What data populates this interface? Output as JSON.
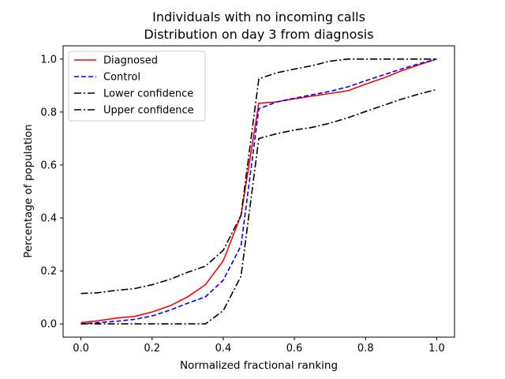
{
  "chart_data": {
    "type": "line",
    "title_lines": [
      "Individuals with no incoming calls",
      "Distribution on day 3 from diagnosis"
    ],
    "xlabel": "Normalized fractional ranking",
    "ylabel": "Percentage of population",
    "xlim": [
      -0.05,
      1.05
    ],
    "ylim": [
      -0.05,
      1.05
    ],
    "xticks": [
      0.0,
      0.2,
      0.4,
      0.6,
      0.8,
      1.0
    ],
    "xtick_labels": [
      "0.0",
      "0.2",
      "0.4",
      "0.6",
      "0.8",
      "1.0"
    ],
    "yticks": [
      0.0,
      0.2,
      0.4,
      0.6,
      0.8,
      1.0
    ],
    "ytick_labels": [
      "0.0",
      "0.2",
      "0.4",
      "0.6",
      "0.8",
      "1.0"
    ],
    "grid": false,
    "legend_position": "top-left",
    "series": [
      {
        "name": "Diagnosed",
        "color": "#ff0000",
        "style": "solid",
        "points": [
          [
            0.0,
            0.005
          ],
          [
            0.05,
            0.012
          ],
          [
            0.1,
            0.022
          ],
          [
            0.15,
            0.028
          ],
          [
            0.2,
            0.045
          ],
          [
            0.25,
            0.068
          ],
          [
            0.3,
            0.102
          ],
          [
            0.35,
            0.148
          ],
          [
            0.4,
            0.238
          ],
          [
            0.45,
            0.41
          ],
          [
            0.5,
            0.833
          ],
          [
            0.55,
            0.838
          ],
          [
            0.6,
            0.85
          ],
          [
            0.65,
            0.86
          ],
          [
            0.7,
            0.87
          ],
          [
            0.75,
            0.88
          ],
          [
            0.8,
            0.905
          ],
          [
            0.85,
            0.928
          ],
          [
            0.9,
            0.955
          ],
          [
            0.95,
            0.978
          ],
          [
            1.0,
            1.0
          ]
        ]
      },
      {
        "name": "Control",
        "color": "#0000ff",
        "style": "dashed",
        "points": [
          [
            0.0,
            0.0
          ],
          [
            0.05,
            0.005
          ],
          [
            0.1,
            0.01
          ],
          [
            0.15,
            0.017
          ],
          [
            0.2,
            0.03
          ],
          [
            0.25,
            0.052
          ],
          [
            0.3,
            0.078
          ],
          [
            0.35,
            0.102
          ],
          [
            0.4,
            0.165
          ],
          [
            0.45,
            0.295
          ],
          [
            0.5,
            0.812
          ],
          [
            0.55,
            0.838
          ],
          [
            0.6,
            0.852
          ],
          [
            0.65,
            0.865
          ],
          [
            0.7,
            0.878
          ],
          [
            0.75,
            0.895
          ],
          [
            0.8,
            0.918
          ],
          [
            0.85,
            0.94
          ],
          [
            0.9,
            0.962
          ],
          [
            0.95,
            0.982
          ],
          [
            1.0,
            1.0
          ]
        ]
      },
      {
        "name": "Lower confidence",
        "color": "#000000",
        "style": "dashdot",
        "points": [
          [
            0.0,
            0.0
          ],
          [
            0.05,
            0.0
          ],
          [
            0.1,
            0.0
          ],
          [
            0.15,
            0.0
          ],
          [
            0.2,
            0.0
          ],
          [
            0.25,
            0.0
          ],
          [
            0.3,
            0.0
          ],
          [
            0.35,
            0.0
          ],
          [
            0.4,
            0.05
          ],
          [
            0.45,
            0.18
          ],
          [
            0.5,
            0.7
          ],
          [
            0.55,
            0.718
          ],
          [
            0.6,
            0.732
          ],
          [
            0.65,
            0.742
          ],
          [
            0.7,
            0.758
          ],
          [
            0.75,
            0.778
          ],
          [
            0.8,
            0.802
          ],
          [
            0.85,
            0.825
          ],
          [
            0.9,
            0.848
          ],
          [
            0.95,
            0.868
          ],
          [
            1.0,
            0.885
          ]
        ]
      },
      {
        "name": "Upper confidence",
        "color": "#000000",
        "style": "dashdot",
        "points": [
          [
            0.0,
            0.115
          ],
          [
            0.05,
            0.118
          ],
          [
            0.1,
            0.127
          ],
          [
            0.15,
            0.133
          ],
          [
            0.2,
            0.148
          ],
          [
            0.25,
            0.168
          ],
          [
            0.3,
            0.195
          ],
          [
            0.35,
            0.218
          ],
          [
            0.4,
            0.278
          ],
          [
            0.45,
            0.41
          ],
          [
            0.5,
            0.925
          ],
          [
            0.55,
            0.948
          ],
          [
            0.6,
            0.962
          ],
          [
            0.65,
            0.975
          ],
          [
            0.7,
            0.992
          ],
          [
            0.75,
            1.0
          ],
          [
            0.8,
            1.0
          ],
          [
            0.85,
            1.0
          ],
          [
            0.9,
            1.0
          ],
          [
            0.95,
            1.0
          ],
          [
            1.0,
            1.0
          ]
        ]
      }
    ]
  }
}
